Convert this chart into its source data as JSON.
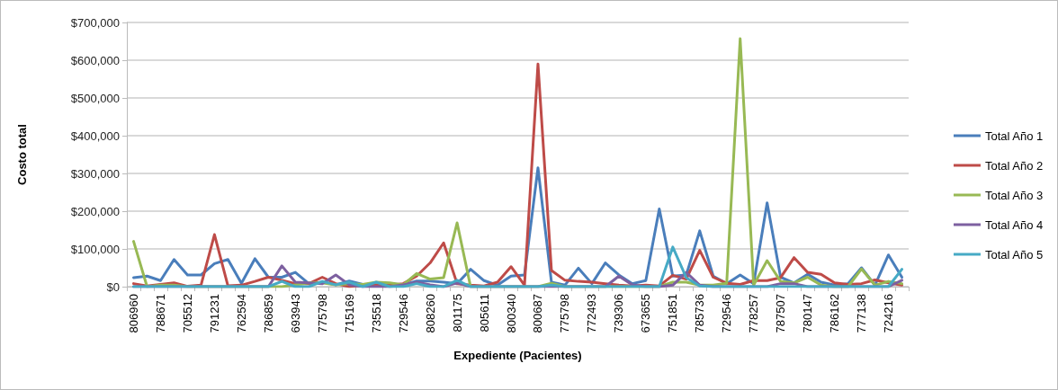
{
  "chart_data": {
    "type": "line",
    "xlabel": "Expediente (Pacientes)",
    "ylabel": "Costo total",
    "categories": [
      "806960",
      null,
      "788671",
      null,
      "705512",
      null,
      "791231",
      null,
      "762594",
      null,
      "786859",
      null,
      "693943",
      null,
      "775798",
      null,
      "715169",
      null,
      "735518",
      null,
      "729546",
      null,
      "808260",
      null,
      "801175",
      null,
      "805611",
      null,
      "800340",
      null,
      "800687",
      null,
      "775798",
      null,
      "772493",
      null,
      "739306",
      null,
      "673655",
      null,
      "751851",
      null,
      "785736",
      null,
      "729546",
      null,
      "778257",
      null,
      "787507",
      null,
      "780147",
      null,
      "786162",
      null,
      "777138",
      null,
      "724216",
      null
    ],
    "ylim": [
      0,
      700000
    ],
    "yticks": [
      {
        "value": 0,
        "label": "$0"
      },
      {
        "value": 100000,
        "label": "$100,000"
      },
      {
        "value": 200000,
        "label": "$200,000"
      },
      {
        "value": 300000,
        "label": "$300,000"
      },
      {
        "value": 400000,
        "label": "$400,000"
      },
      {
        "value": 500000,
        "label": "$500,000"
      },
      {
        "value": 600000,
        "label": "$600,000"
      },
      {
        "value": 700000,
        "label": "$700,000"
      }
    ],
    "grid": "y",
    "legend": "right",
    "marker": "none",
    "line_style": "solid",
    "series": [
      {
        "name": "Total Año 1",
        "color": "#4a7ebb",
        "values": [
          24000,
          28000,
          16000,
          72000,
          31000,
          31000,
          61000,
          72000,
          9000,
          74000,
          25000,
          25000,
          38000,
          8000,
          12000,
          5000,
          15000,
          6000,
          5000,
          8000,
          5000,
          15000,
          15000,
          12000,
          8000,
          46000,
          16000,
          4000,
          28000,
          31000,
          315000,
          12000,
          4000,
          49000,
          8000,
          63000,
          31000,
          8000,
          16000,
          206000,
          28000,
          31000,
          148000,
          28000,
          8000,
          31000,
          8000,
          222000,
          25000,
          10000,
          33000,
          12000,
          4000,
          8000,
          50000,
          4000,
          84000,
          25000
        ]
      },
      {
        "name": "Total Año 2",
        "color": "#be4b48",
        "values": [
          8000,
          2000,
          6000,
          10000,
          1000,
          4000,
          138000,
          2000,
          4000,
          14000,
          25000,
          17000,
          8000,
          8000,
          25000,
          8000,
          0,
          4000,
          4000,
          4000,
          8000,
          28000,
          63000,
          116000,
          8000,
          4000,
          2000,
          12000,
          53000,
          4000,
          590000,
          43000,
          17000,
          14000,
          12000,
          8000,
          4000,
          2000,
          4000,
          2000,
          30000,
          20000,
          96000,
          25000,
          9000,
          6000,
          16000,
          16000,
          24000,
          77000,
          38000,
          33000,
          10000,
          6000,
          8000,
          18000,
          10000,
          4000
        ]
      },
      {
        "name": "Total Año 3",
        "color": "#98b954",
        "values": [
          120000,
          0,
          4000,
          4000,
          0,
          0,
          0,
          0,
          0,
          0,
          0,
          0,
          5000,
          10000,
          10000,
          5000,
          8000,
          6000,
          12000,
          10000,
          5000,
          35000,
          20000,
          24000,
          169000,
          0,
          0,
          0,
          0,
          0,
          0,
          9000,
          0,
          0,
          0,
          0,
          0,
          0,
          0,
          0,
          12000,
          12000,
          4000,
          4000,
          9000,
          657000,
          4000,
          69000,
          14000,
          10000,
          25000,
          4000,
          0,
          0,
          47000,
          4000,
          14000,
          8000
        ]
      },
      {
        "name": "Total Año 4",
        "color": "#7d60a0",
        "values": [
          0,
          0,
          0,
          0,
          0,
          0,
          0,
          0,
          0,
          0,
          0,
          55000,
          12000,
          10000,
          8000,
          31000,
          5000,
          0,
          0,
          0,
          5000,
          12000,
          5000,
          0,
          10000,
          0,
          0,
          0,
          0,
          0,
          0,
          0,
          0,
          0,
          0,
          0,
          28000,
          5000,
          0,
          0,
          4000,
          38000,
          4000,
          0,
          0,
          0,
          0,
          0,
          8000,
          8000,
          0,
          0,
          0,
          0,
          0,
          0,
          0,
          17000
        ]
      },
      {
        "name": "Total Año 5",
        "color": "#46aac5",
        "values": [
          0,
          0,
          0,
          0,
          0,
          0,
          0,
          0,
          0,
          0,
          0,
          14000,
          0,
          0,
          14000,
          5000,
          12000,
          0,
          12000,
          0,
          0,
          8000,
          0,
          0,
          17000,
          0,
          0,
          0,
          0,
          0,
          0,
          4000,
          0,
          0,
          0,
          0,
          0,
          0,
          0,
          0,
          105000,
          24000,
          2000,
          0,
          0,
          0,
          0,
          0,
          0,
          0,
          0,
          0,
          0,
          0,
          0,
          0,
          0,
          46000
        ]
      }
    ]
  }
}
